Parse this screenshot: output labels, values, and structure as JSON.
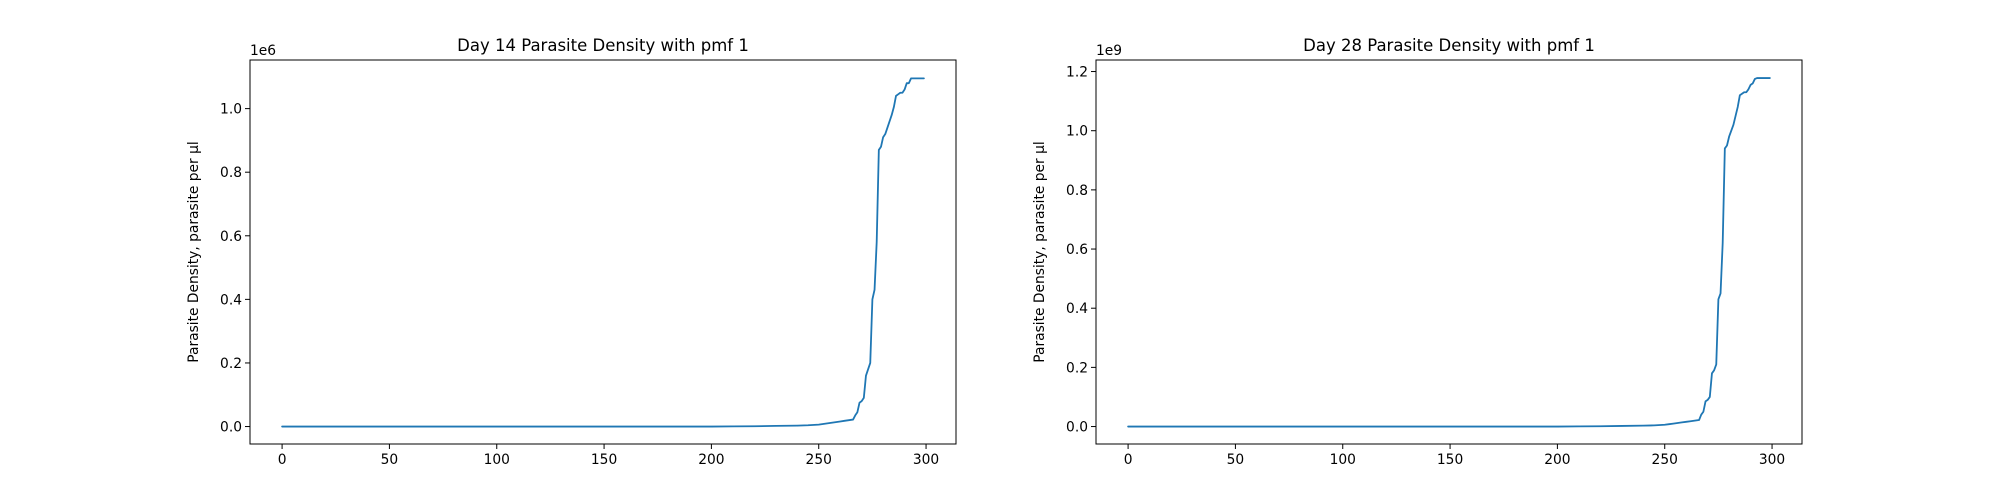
{
  "chart_data": [
    {
      "type": "line",
      "title": "Day 14 Parasite Density with pmf 1",
      "xlabel": "",
      "ylabel": "Parasite Density, parasite per µl",
      "y_offset_label": "1e6",
      "y_scale_factor": 1000000,
      "xlim": [
        -14.95,
        313.95
      ],
      "ylim": [
        -0.0549,
        1.1529
      ],
      "x_ticks": [
        0,
        50,
        100,
        150,
        200,
        250,
        300
      ],
      "x_tick_labels": [
        "0",
        "50",
        "100",
        "150",
        "200",
        "250",
        "300"
      ],
      "y_ticks": [
        0,
        0.2,
        0.4,
        0.6,
        0.8,
        1.0
      ],
      "y_tick_labels": [
        "0.0",
        "0.2",
        "0.4",
        "0.6",
        "0.8",
        "1.0"
      ],
      "grid": false,
      "line_color": "#1f77b4",
      "series": [
        {
          "x": [
            0,
            50,
            100,
            150,
            200,
            210,
            220,
            230,
            240,
            245,
            250,
            252,
            254,
            256,
            258,
            260,
            262,
            264,
            266,
            267,
            268,
            269,
            270,
            271,
            272,
            273,
            274,
            275,
            276,
            277,
            278,
            279,
            280,
            281,
            282,
            283,
            284,
            285,
            286,
            287,
            288,
            289,
            290,
            291,
            292,
            293,
            294,
            295,
            296,
            297,
            298,
            299
          ],
          "y": [
            0,
            0,
            0,
            0,
            0,
            0.0005,
            0.001,
            0.002,
            0.003,
            0.004,
            0.006,
            0.008,
            0.01,
            0.012,
            0.014,
            0.016,
            0.018,
            0.02,
            0.022,
            0.035,
            0.045,
            0.075,
            0.08,
            0.09,
            0.16,
            0.18,
            0.2,
            0.4,
            0.43,
            0.58,
            0.87,
            0.88,
            0.91,
            0.92,
            0.94,
            0.96,
            0.98,
            1.005,
            1.04,
            1.045,
            1.05,
            1.05,
            1.06,
            1.08,
            1.08,
            1.095,
            1.095,
            1.095,
            1.095,
            1.095,
            1.095,
            1.095
          ]
        }
      ]
    },
    {
      "type": "line",
      "title": "Day 28 Parasite Density with pmf 1",
      "xlabel": "",
      "ylabel": "Parasite Density, parasite per µl",
      "y_offset_label": "1e9",
      "y_scale_factor": 1000000000,
      "xlim": [
        -14.95,
        313.95
      ],
      "ylim": [
        -0.059,
        1.239
      ],
      "x_ticks": [
        0,
        50,
        100,
        150,
        200,
        250,
        300
      ],
      "x_tick_labels": [
        "0",
        "50",
        "100",
        "150",
        "200",
        "250",
        "300"
      ],
      "y_ticks": [
        0,
        0.2,
        0.4,
        0.6,
        0.8,
        1.0,
        1.2
      ],
      "y_tick_labels": [
        "0.0",
        "0.2",
        "0.4",
        "0.6",
        "0.8",
        "1.0",
        "1.2"
      ],
      "grid": false,
      "line_color": "#1f77b4",
      "series": [
        {
          "x": [
            0,
            50,
            100,
            150,
            200,
            210,
            220,
            230,
            240,
            245,
            250,
            252,
            254,
            256,
            258,
            260,
            262,
            264,
            266,
            267,
            268,
            269,
            270,
            271,
            272,
            273,
            274,
            275,
            276,
            277,
            278,
            279,
            280,
            281,
            282,
            283,
            284,
            285,
            286,
            287,
            288,
            289,
            290,
            291,
            292,
            293,
            294,
            295,
            296,
            297,
            298,
            299
          ],
          "y": [
            0,
            0,
            0,
            0,
            0,
            0.0005,
            0.001,
            0.002,
            0.003,
            0.004,
            0.006,
            0.008,
            0.01,
            0.012,
            0.014,
            0.016,
            0.018,
            0.02,
            0.022,
            0.04,
            0.05,
            0.085,
            0.09,
            0.1,
            0.18,
            0.19,
            0.21,
            0.43,
            0.45,
            0.62,
            0.94,
            0.95,
            0.98,
            1.0,
            1.02,
            1.05,
            1.08,
            1.12,
            1.125,
            1.13,
            1.13,
            1.14,
            1.155,
            1.16,
            1.175,
            1.178,
            1.178,
            1.178,
            1.178,
            1.178,
            1.178,
            1.178
          ]
        }
      ]
    }
  ]
}
